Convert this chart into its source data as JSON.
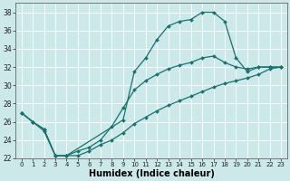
{
  "title": "",
  "xlabel": "Humidex (Indice chaleur)",
  "ylabel": "",
  "bg_color": "#cce8e8",
  "line_color": "#1a7070",
  "grid_color": "#b8d8d8",
  "ylim": [
    22,
    39
  ],
  "xlim": [
    -0.5,
    23.5
  ],
  "yticks": [
    22,
    24,
    26,
    28,
    30,
    32,
    34,
    36,
    38
  ],
  "xticks": [
    0,
    1,
    2,
    3,
    4,
    5,
    6,
    7,
    8,
    9,
    10,
    11,
    12,
    13,
    14,
    15,
    16,
    17,
    18,
    19,
    20,
    21,
    22,
    23
  ],
  "series": [
    {
      "x": [
        0,
        1,
        2,
        3,
        4,
        9,
        10,
        11,
        12,
        13,
        14,
        15,
        16,
        17,
        18,
        19,
        20,
        21,
        22,
        23
      ],
      "y": [
        27,
        26,
        25.2,
        22.3,
        22.3,
        26.2,
        31.5,
        33.0,
        35.0,
        36.5,
        37.0,
        37.2,
        38.0,
        38.0,
        37.0,
        33.0,
        31.5,
        32.0,
        32.0,
        32.0
      ]
    },
    {
      "x": [
        0,
        1,
        2,
        3,
        4,
        5,
        6,
        7,
        8,
        9,
        10,
        11,
        12,
        13,
        14,
        15,
        16,
        17,
        18,
        19,
        20,
        21,
        22,
        23
      ],
      "y": [
        27,
        26,
        25.2,
        22.3,
        22.3,
        22.8,
        23.2,
        24.0,
        25.5,
        27.5,
        29.5,
        30.5,
        31.2,
        31.8,
        32.2,
        32.5,
        33.0,
        33.2,
        32.5,
        32.0,
        31.8,
        32.0,
        32.0,
        32.0
      ]
    },
    {
      "x": [
        0,
        1,
        2,
        3,
        4,
        5,
        6,
        7,
        8,
        9,
        10,
        11,
        12,
        13,
        14,
        15,
        16,
        17,
        18,
        19,
        20,
        21,
        22,
        23
      ],
      "y": [
        27,
        26,
        25.0,
        22.3,
        22.3,
        22.3,
        22.8,
        23.5,
        24.0,
        24.8,
        25.8,
        26.5,
        27.2,
        27.8,
        28.3,
        28.8,
        29.3,
        29.8,
        30.2,
        30.5,
        30.8,
        31.2,
        31.8,
        32.0
      ]
    }
  ]
}
